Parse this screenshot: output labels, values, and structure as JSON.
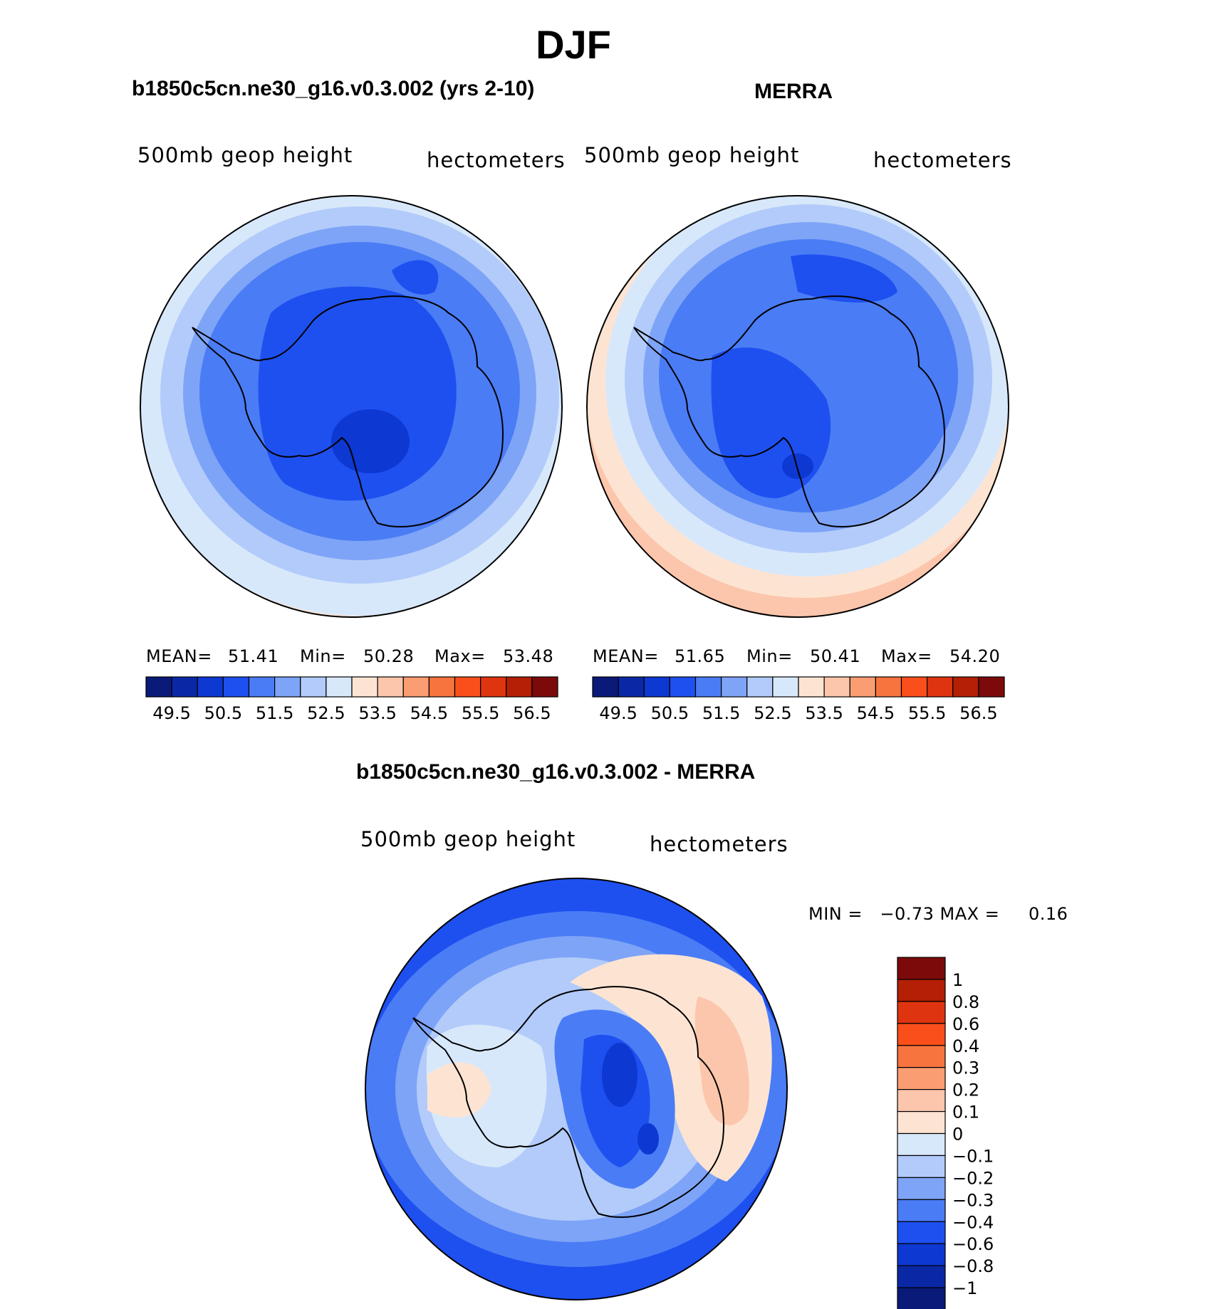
{
  "figure": {
    "title": "DJF"
  },
  "panels": [
    {
      "title": "b1850c5cn.ne30_g16.v0.3.002 (yrs 2-10)",
      "left_label": "500mb geop height",
      "right_label": "hectometers",
      "stats": {
        "mean_label": "MEAN=",
        "mean": "51.41",
        "min_label": "Min=",
        "min": "50.28",
        "max_label": "Max=",
        "max": "53.48"
      }
    },
    {
      "title": "MERRA",
      "left_label": "500mb geop height",
      "right_label": "hectometers",
      "stats": {
        "mean_label": "MEAN=",
        "mean": "51.65",
        "min_label": "Min=",
        "min": "50.41",
        "max_label": "Max=",
        "max": "54.20"
      }
    }
  ],
  "difference": {
    "title": "b1850c5cn.ne30_g16.v0.3.002 - MERRA",
    "left_label": "500mb geop height",
    "right_label": "hectometers",
    "minmax_text": "MIN =   −0.73 MAX =     0.16"
  },
  "colorbar_field": {
    "colors": [
      "#0a1a78",
      "#0a28a6",
      "#0d38d2",
      "#1e50f0",
      "#4a7cf5",
      "#7ea4f7",
      "#b2cbfa",
      "#d8e8fb",
      "#fde4d2",
      "#fcc6ac",
      "#fb9d72",
      "#f7743f",
      "#fa4f1a",
      "#df3410",
      "#b32005",
      "#7d0a0a"
    ],
    "tick_labels": [
      "49.5",
      "50.5",
      "51.5",
      "52.5",
      "53.5",
      "54.5",
      "55.5",
      "56.5"
    ]
  },
  "colorbar_diff": {
    "colors": [
      "#7d0a0a",
      "#b32005",
      "#df3410",
      "#fa4f1a",
      "#f7743f",
      "#fb9d72",
      "#fcc6ac",
      "#fde4d2",
      "#d8e8fb",
      "#b2cbfa",
      "#7ea4f7",
      "#4a7cf5",
      "#1e50f0",
      "#0d38d2",
      "#0a28a6",
      "#0a1a78"
    ],
    "tick_labels": [
      "1",
      "0.8",
      "0.6",
      "0.4",
      "0.3",
      "0.2",
      "0.1",
      "0",
      "−0.1",
      "−0.2",
      "−0.3",
      "−0.4",
      "−0.6",
      "−0.8",
      "−1"
    ]
  },
  "colors": {
    "coast": "#000000",
    "outline": "#000000"
  }
}
